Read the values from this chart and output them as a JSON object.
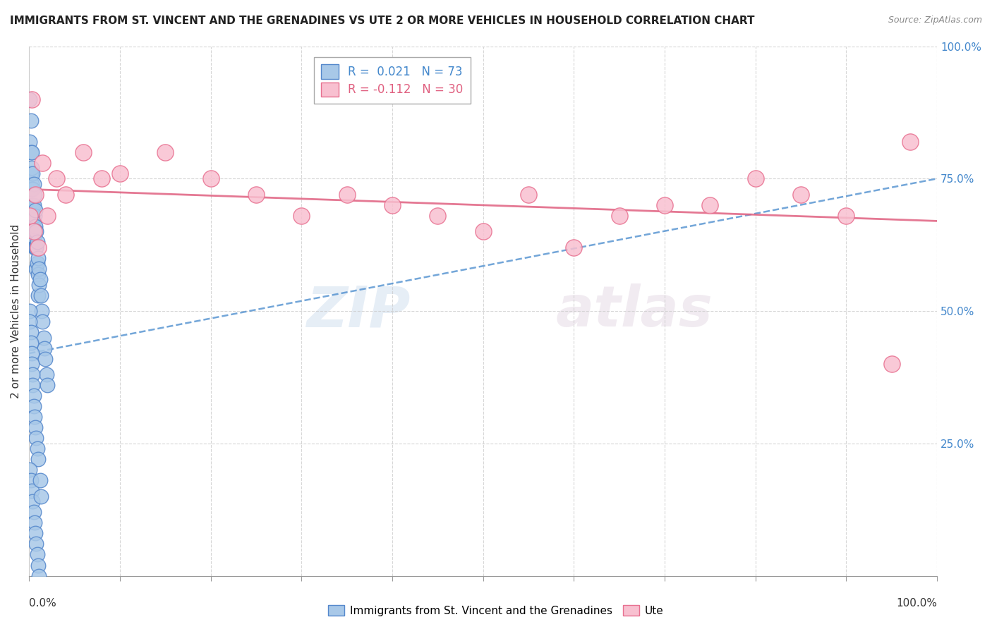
{
  "title": "IMMIGRANTS FROM ST. VINCENT AND THE GRENADINES VS UTE 2 OR MORE VEHICLES IN HOUSEHOLD CORRELATION CHART",
  "source": "Source: ZipAtlas.com",
  "ylabel": "2 or more Vehicles in Household",
  "legend_blue_label": "Immigrants from St. Vincent and the Grenadines",
  "legend_pink_label": "Ute",
  "blue_R": 0.021,
  "blue_N": 73,
  "pink_R": -0.112,
  "pink_N": 30,
  "xlim": [
    0.0,
    1.0
  ],
  "ylim": [
    0.0,
    1.0
  ],
  "xticks": [
    0.0,
    0.1,
    0.2,
    0.3,
    0.4,
    0.5,
    0.6,
    0.7,
    0.8,
    0.9,
    1.0
  ],
  "yticks": [
    0.0,
    0.25,
    0.5,
    0.75,
    1.0
  ],
  "ytick_labels_right": [
    "",
    "25.0%",
    "50.0%",
    "75.0%",
    "100.0%"
  ],
  "background_color": "#ffffff",
  "grid_color": "#cccccc",
  "blue_color": "#a8c8e8",
  "blue_edge_color": "#5588cc",
  "pink_color": "#f8c0d0",
  "pink_edge_color": "#e87090",
  "blue_line_color": "#4488cc",
  "pink_line_color": "#e06080",
  "blue_scatter_x": [
    0.001,
    0.001,
    0.002,
    0.002,
    0.002,
    0.002,
    0.003,
    0.003,
    0.003,
    0.003,
    0.003,
    0.004,
    0.004,
    0.004,
    0.004,
    0.005,
    0.005,
    0.005,
    0.005,
    0.006,
    0.006,
    0.006,
    0.006,
    0.007,
    0.007,
    0.007,
    0.008,
    0.008,
    0.008,
    0.009,
    0.009,
    0.01,
    0.01,
    0.01,
    0.011,
    0.011,
    0.012,
    0.013,
    0.014,
    0.015,
    0.016,
    0.017,
    0.018,
    0.019,
    0.02,
    0.001,
    0.001,
    0.002,
    0.002,
    0.003,
    0.003,
    0.004,
    0.004,
    0.005,
    0.005,
    0.006,
    0.007,
    0.008,
    0.009,
    0.01,
    0.001,
    0.002,
    0.003,
    0.004,
    0.005,
    0.006,
    0.007,
    0.008,
    0.009,
    0.01,
    0.011,
    0.012,
    0.013
  ],
  "blue_scatter_y": [
    0.9,
    0.82,
    0.86,
    0.8,
    0.76,
    0.73,
    0.8,
    0.77,
    0.74,
    0.7,
    0.67,
    0.76,
    0.73,
    0.7,
    0.67,
    0.74,
    0.7,
    0.67,
    0.64,
    0.72,
    0.68,
    0.65,
    0.62,
    0.69,
    0.66,
    0.62,
    0.65,
    0.62,
    0.58,
    0.63,
    0.59,
    0.6,
    0.57,
    0.53,
    0.58,
    0.55,
    0.56,
    0.53,
    0.5,
    0.48,
    0.45,
    0.43,
    0.41,
    0.38,
    0.36,
    0.5,
    0.48,
    0.46,
    0.44,
    0.42,
    0.4,
    0.38,
    0.36,
    0.34,
    0.32,
    0.3,
    0.28,
    0.26,
    0.24,
    0.22,
    0.2,
    0.18,
    0.16,
    0.14,
    0.12,
    0.1,
    0.08,
    0.06,
    0.04,
    0.02,
    0.0,
    0.18,
    0.15
  ],
  "pink_scatter_x": [
    0.001,
    0.003,
    0.005,
    0.007,
    0.01,
    0.015,
    0.02,
    0.03,
    0.04,
    0.06,
    0.08,
    0.1,
    0.15,
    0.2,
    0.25,
    0.3,
    0.35,
    0.4,
    0.45,
    0.5,
    0.55,
    0.6,
    0.65,
    0.7,
    0.75,
    0.8,
    0.85,
    0.9,
    0.95,
    0.97
  ],
  "pink_scatter_y": [
    0.68,
    0.9,
    0.65,
    0.72,
    0.62,
    0.78,
    0.68,
    0.75,
    0.72,
    0.8,
    0.75,
    0.76,
    0.8,
    0.75,
    0.72,
    0.68,
    0.72,
    0.7,
    0.68,
    0.65,
    0.72,
    0.62,
    0.68,
    0.7,
    0.7,
    0.75,
    0.72,
    0.68,
    0.4,
    0.82
  ],
  "blue_line_x0": 0.0,
  "blue_line_y0": 0.42,
  "blue_line_x1": 1.0,
  "blue_line_y1": 0.75,
  "pink_line_x0": 0.0,
  "pink_line_y0": 0.73,
  "pink_line_x1": 1.0,
  "pink_line_y1": 0.67
}
